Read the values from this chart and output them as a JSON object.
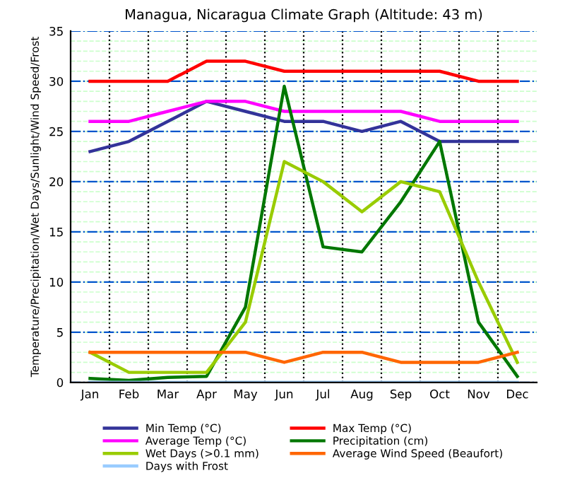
{
  "chart_data": {
    "type": "line",
    "title": "Managua, Nicaragua Climate Graph (Altitude: 43 m)",
    "ylabel": "Temperature/Precipitation/Wet Days/Sunlight/Wind Speed/Frost",
    "categories": [
      "Jan",
      "Feb",
      "Mar",
      "Apr",
      "May",
      "Jun",
      "Jul",
      "Aug",
      "Sep",
      "Oct",
      "Nov",
      "Dec"
    ],
    "series": [
      {
        "name": "Min Temp (°C)",
        "color": "#333399",
        "values": [
          23,
          24,
          26,
          28,
          27,
          26,
          26,
          25,
          26,
          24,
          24,
          24
        ]
      },
      {
        "name": "Max Temp (°C)",
        "color": "#ff0000",
        "values": [
          30,
          30,
          30,
          32,
          32,
          31,
          31,
          31,
          31,
          31,
          30,
          30
        ]
      },
      {
        "name": "Average Temp (°C)",
        "color": "#ff00ff",
        "values": [
          26,
          26,
          27,
          28,
          28,
          27,
          27,
          27,
          27,
          26,
          26,
          26
        ]
      },
      {
        "name": "Precipitation (cm)",
        "color": "#007700",
        "values": [
          0.4,
          0.2,
          0.5,
          0.6,
          7.5,
          29.5,
          13.5,
          13,
          18,
          24,
          6,
          0.6
        ]
      },
      {
        "name": "Wet Days (>0.1 mm)",
        "color": "#99cc00",
        "values": [
          3,
          1,
          1,
          1,
          6,
          22,
          20,
          17,
          20,
          19,
          10,
          2
        ]
      },
      {
        "name": "Average Wind Speed (Beaufort)",
        "color": "#ff6600",
        "values": [
          3,
          3,
          3,
          3,
          3,
          2,
          3,
          3,
          2,
          2,
          2,
          3
        ]
      },
      {
        "name": "Days with Frost",
        "color": "#99ccff",
        "values": [
          0,
          0,
          0,
          0,
          0,
          0,
          0,
          0,
          0,
          0,
          0,
          0
        ]
      }
    ],
    "ylim": [
      0,
      35
    ],
    "yticks": [
      0,
      5,
      10,
      15,
      20,
      25,
      30,
      35
    ],
    "grid": true,
    "legend": "bottom",
    "marker": "none",
    "line_style": "solid"
  }
}
